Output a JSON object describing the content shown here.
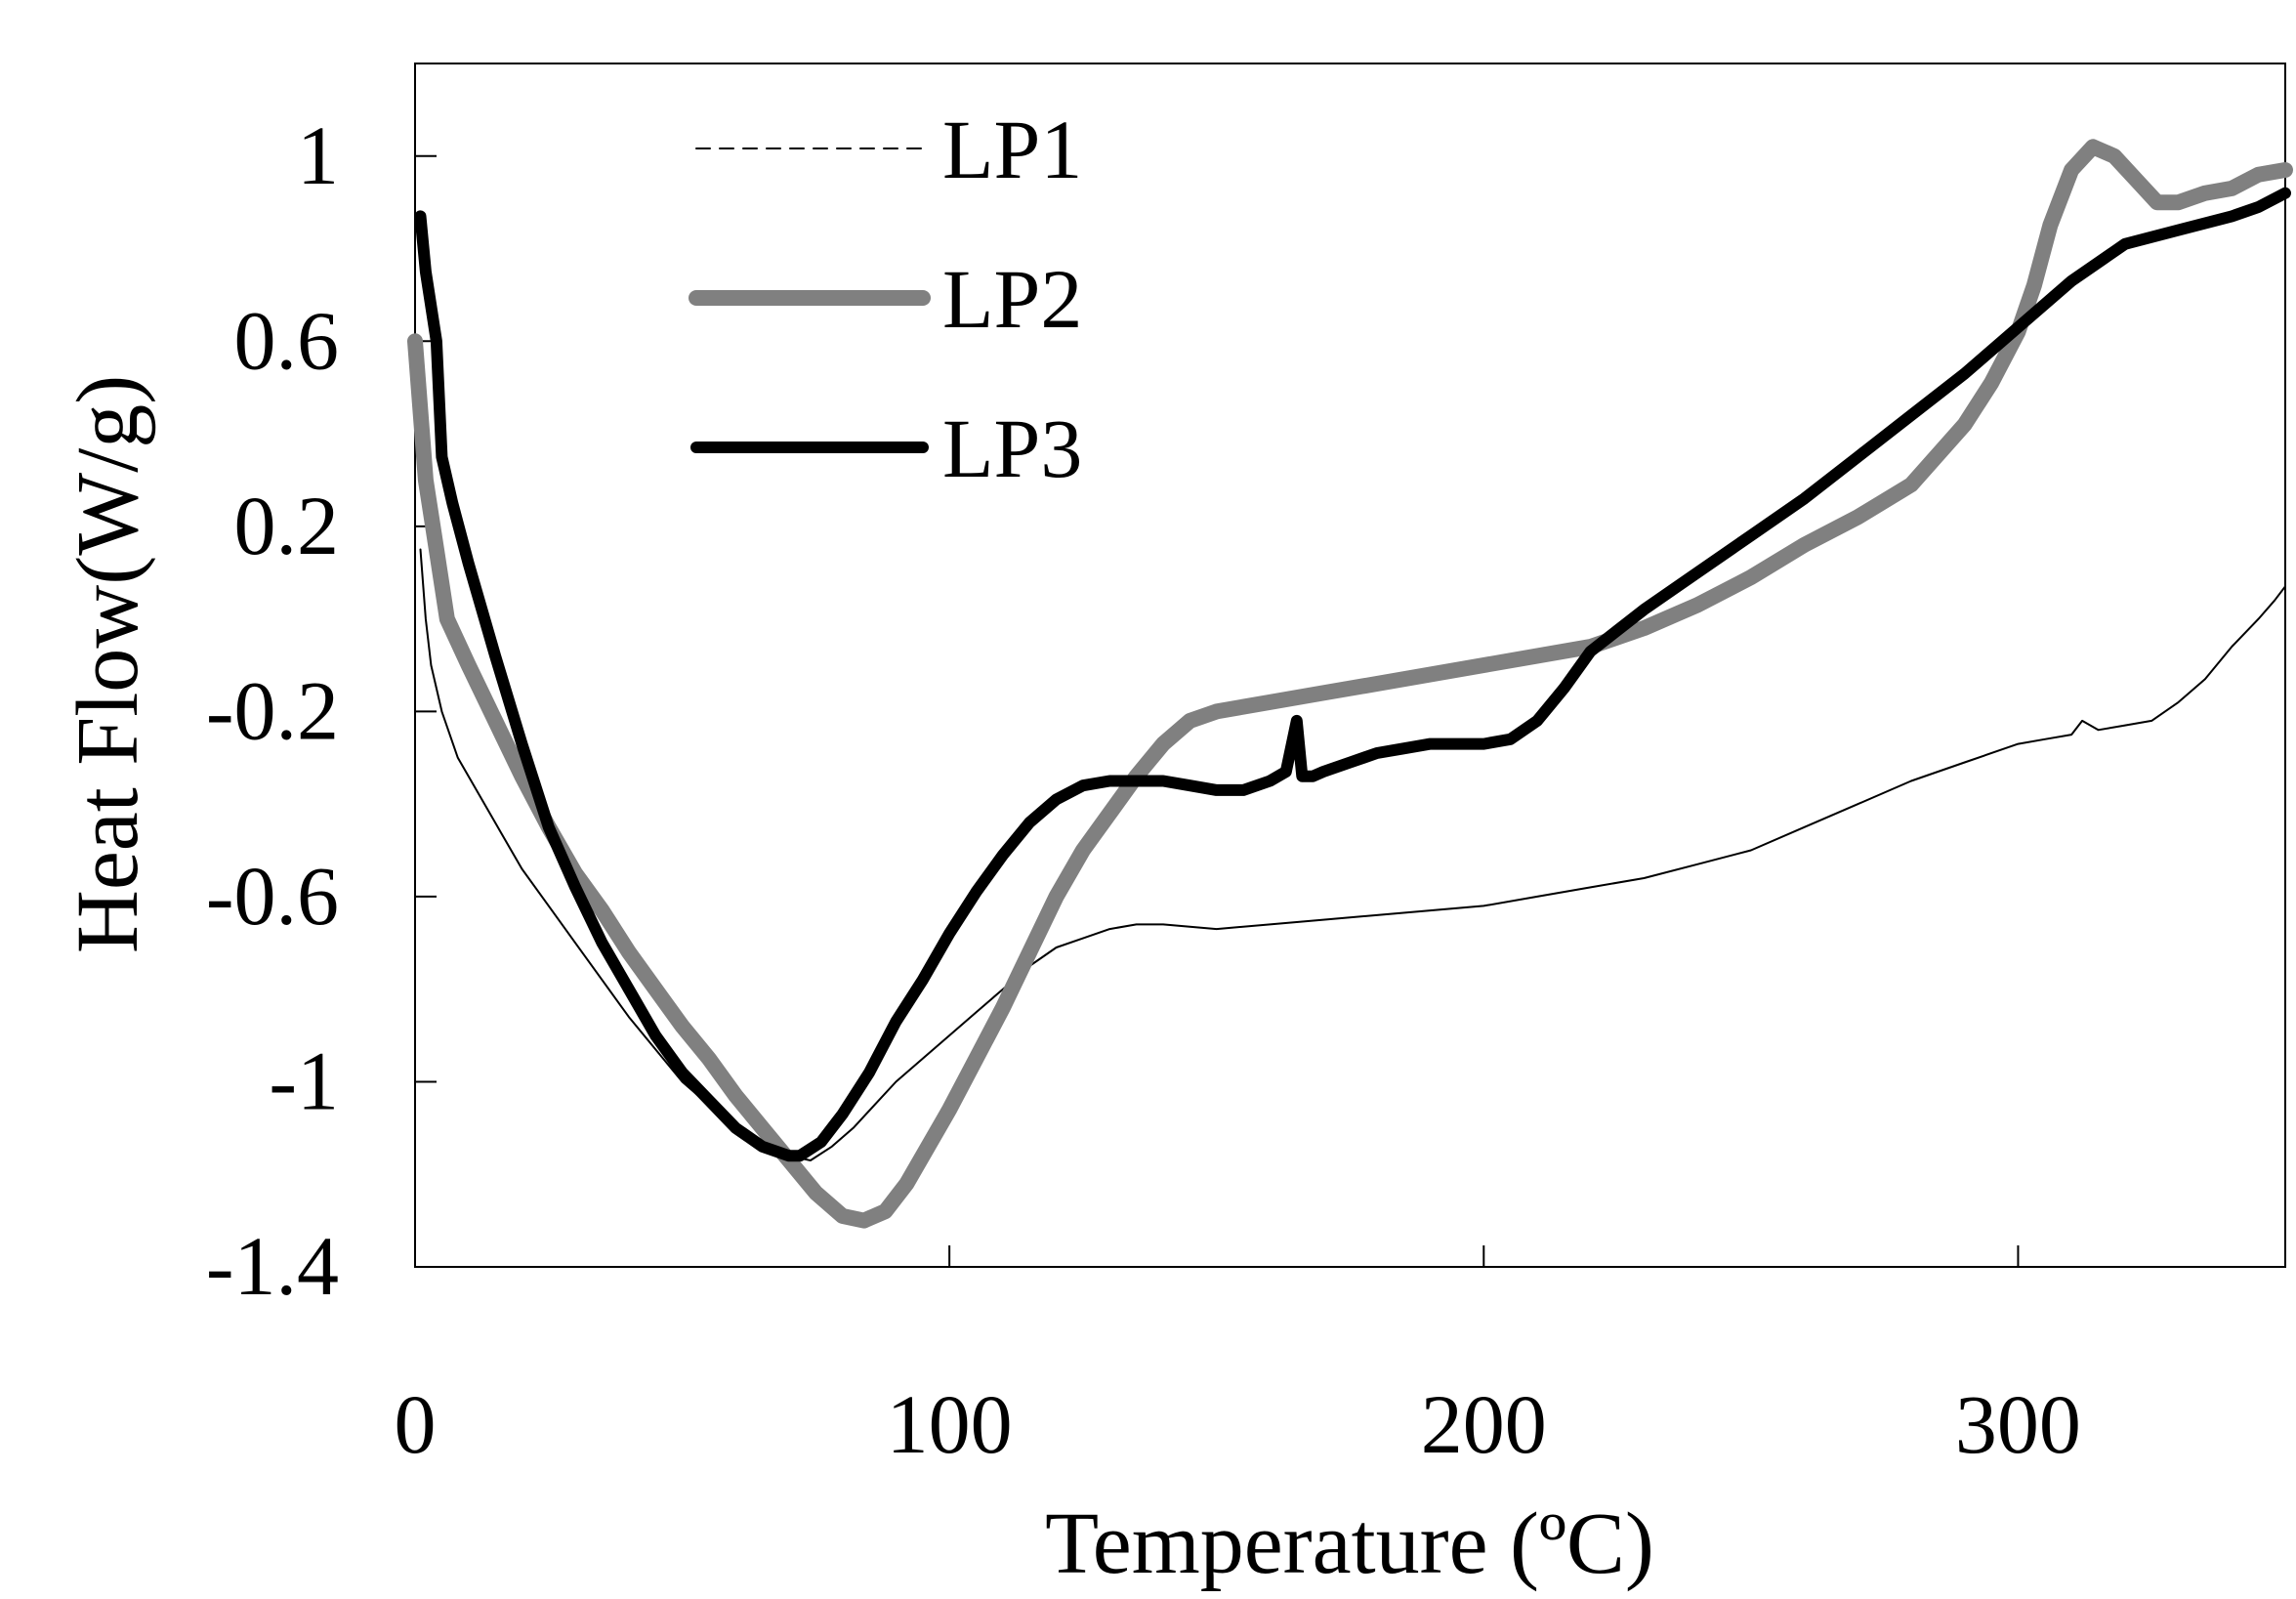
{
  "chart_data": {
    "type": "line",
    "title": "",
    "xlabel": "Temperature (ºC)",
    "ylabel": "Heat Flow(W/g)",
    "xlim": [
      0,
      350
    ],
    "ylim": [
      -1.4,
      1.2
    ],
    "xticks": [
      0,
      100,
      200,
      300
    ],
    "xtick_labels": [
      "0",
      "100",
      "200",
      "300"
    ],
    "yticks": [
      1,
      0.6,
      0.2,
      -0.2,
      -0.6,
      -1,
      -1.4
    ],
    "ytick_labels": [
      "1",
      "0.6",
      "0.2",
      "-0.2",
      "-0.6",
      "-1",
      "-1.4"
    ],
    "grid": false,
    "legend_position": "top-left",
    "series": [
      {
        "name": "LP1",
        "color": "#000000",
        "style": "thin",
        "x": [
          1,
          2,
          3,
          5,
          8,
          12,
          16,
          20,
          25,
          30,
          35,
          40,
          45,
          50,
          55,
          60,
          65,
          70,
          74,
          78,
          82,
          86,
          90,
          95,
          100,
          105,
          110,
          115,
          120,
          125,
          130,
          135,
          140,
          150,
          160,
          170,
          180,
          190,
          200,
          210,
          220,
          230,
          240,
          250,
          260,
          270,
          280,
          290,
          300,
          305,
          310,
          312,
          315,
          320,
          325,
          330,
          335,
          340,
          345,
          348,
          350
        ],
        "y": [
          0.15,
          0.0,
          -0.1,
          -0.2,
          -0.3,
          -0.38,
          -0.46,
          -0.54,
          -0.62,
          -0.7,
          -0.78,
          -0.86,
          -0.93,
          -1.0,
          -1.05,
          -1.1,
          -1.14,
          -1.16,
          -1.17,
          -1.14,
          -1.1,
          -1.05,
          -1.0,
          -0.95,
          -0.9,
          -0.85,
          -0.8,
          -0.75,
          -0.71,
          -0.69,
          -0.67,
          -0.66,
          -0.66,
          -0.67,
          -0.66,
          -0.65,
          -0.64,
          -0.63,
          -0.62,
          -0.6,
          -0.58,
          -0.56,
          -0.53,
          -0.5,
          -0.45,
          -0.4,
          -0.35,
          -0.31,
          -0.27,
          -0.26,
          -0.25,
          -0.22,
          -0.24,
          -0.23,
          -0.22,
          -0.18,
          -0.13,
          -0.06,
          0.0,
          0.04,
          0.07
        ]
      },
      {
        "name": "LP2",
        "color": "#808080",
        "style": "thick",
        "x": [
          0,
          2,
          4,
          6,
          10,
          15,
          20,
          25,
          30,
          35,
          40,
          45,
          50,
          55,
          60,
          65,
          70,
          75,
          80,
          84,
          88,
          92,
          96,
          100,
          105,
          110,
          115,
          120,
          125,
          130,
          135,
          140,
          145,
          150,
          160,
          170,
          180,
          190,
          200,
          210,
          220,
          230,
          240,
          250,
          260,
          270,
          280,
          290,
          295,
          300,
          303,
          306,
          310,
          314,
          318,
          322,
          326,
          330,
          335,
          340,
          345,
          350
        ],
        "y": [
          0.6,
          0.3,
          0.15,
          0.0,
          -0.1,
          -0.22,
          -0.34,
          -0.45,
          -0.55,
          -0.63,
          -0.72,
          -0.8,
          -0.88,
          -0.95,
          -1.03,
          -1.1,
          -1.17,
          -1.24,
          -1.29,
          -1.3,
          -1.28,
          -1.22,
          -1.14,
          -1.06,
          -0.95,
          -0.84,
          -0.72,
          -0.6,
          -0.5,
          -0.42,
          -0.34,
          -0.27,
          -0.22,
          -0.2,
          -0.18,
          -0.16,
          -0.14,
          -0.12,
          -0.1,
          -0.08,
          -0.06,
          -0.02,
          0.03,
          0.09,
          0.16,
          0.22,
          0.29,
          0.42,
          0.51,
          0.62,
          0.72,
          0.85,
          0.97,
          1.02,
          1.0,
          0.95,
          0.9,
          0.9,
          0.92,
          0.93,
          0.96,
          0.97
        ]
      },
      {
        "name": "LP3",
        "color": "#000000",
        "style": "bold",
        "x": [
          1,
          2,
          4,
          5,
          7,
          10,
          15,
          20,
          25,
          30,
          35,
          40,
          45,
          50,
          55,
          60,
          65,
          70,
          72,
          76,
          80,
          85,
          90,
          95,
          100,
          105,
          110,
          115,
          120,
          125,
          130,
          135,
          140,
          145,
          150,
          155,
          160,
          163,
          165,
          166,
          168,
          170,
          175,
          180,
          185,
          190,
          195,
          200,
          205,
          210,
          215,
          220,
          230,
          240,
          250,
          260,
          270,
          280,
          290,
          300,
          310,
          320,
          330,
          340,
          345,
          350
        ],
        "y": [
          0.87,
          0.75,
          0.6,
          0.35,
          0.25,
          0.12,
          -0.08,
          -0.27,
          -0.45,
          -0.58,
          -0.7,
          -0.8,
          -0.9,
          -0.98,
          -1.04,
          -1.1,
          -1.14,
          -1.16,
          -1.16,
          -1.13,
          -1.07,
          -0.98,
          -0.87,
          -0.78,
          -0.68,
          -0.59,
          -0.51,
          -0.44,
          -0.39,
          -0.36,
          -0.35,
          -0.35,
          -0.35,
          -0.36,
          -0.37,
          -0.37,
          -0.35,
          -0.33,
          -0.22,
          -0.34,
          -0.34,
          -0.33,
          -0.31,
          -0.29,
          -0.28,
          -0.27,
          -0.27,
          -0.27,
          -0.26,
          -0.22,
          -0.15,
          -0.07,
          0.02,
          0.1,
          0.18,
          0.26,
          0.35,
          0.44,
          0.53,
          0.63,
          0.73,
          0.81,
          0.84,
          0.87,
          0.89,
          0.92
        ]
      }
    ]
  }
}
